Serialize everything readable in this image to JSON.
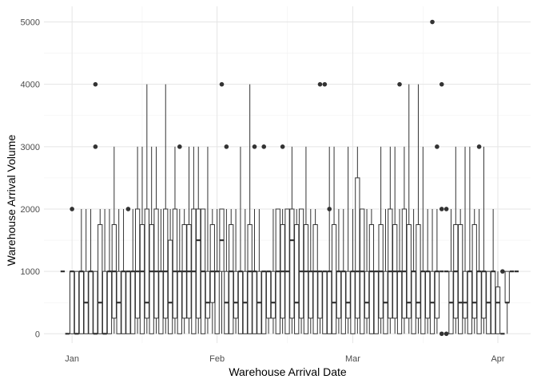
{
  "chart_data": {
    "type": "box",
    "xlabel": "Warehouse Arrival Date",
    "ylabel": "Warehouse Arrival Volume",
    "xlim": [
      "2023-12-26",
      "2024-04-08"
    ],
    "ylim": [
      -150,
      5250
    ],
    "x_ticks": [
      {
        "date": "2024-01-01",
        "label": "Jan"
      },
      {
        "date": "2024-02-01",
        "label": "Feb"
      },
      {
        "date": "2024-03-01",
        "label": "Mar"
      },
      {
        "date": "2024-04-01",
        "label": "Apr"
      }
    ],
    "x_minor_ticks": [
      "2024-01-16",
      "2024-02-16",
      "2024-03-16"
    ],
    "y_ticks": [
      0,
      1000,
      2000,
      3000,
      4000,
      5000
    ],
    "grid": true,
    "colors": {
      "box": "#333333",
      "point": "#333333",
      "grid_major": "#e5e5e5",
      "grid_minor": "#f2f2f2"
    },
    "boxes": [
      {
        "date": "2023-12-30",
        "min": 1000,
        "q1": 1000,
        "median": 1000,
        "q3": 1000,
        "max": 1000
      },
      {
        "date": "2023-12-31",
        "min": 0,
        "q1": 0,
        "median": 0,
        "q3": 0,
        "max": 0
      },
      {
        "date": "2024-01-01",
        "min": 0,
        "q1": 0,
        "median": 1000,
        "q3": 1000,
        "max": 1000,
        "outliers": [
          2000
        ]
      },
      {
        "date": "2024-01-02",
        "min": 0,
        "q1": 0,
        "median": 0,
        "q3": 1000,
        "max": 1000
      },
      {
        "date": "2024-01-03",
        "min": 0,
        "q1": 0,
        "median": 1000,
        "q3": 1000,
        "max": 2000
      },
      {
        "date": "2024-01-04",
        "min": 0,
        "q1": 0,
        "median": 500,
        "q3": 1000,
        "max": 2000
      },
      {
        "date": "2024-01-05",
        "min": 0,
        "q1": 0,
        "median": 1000,
        "q3": 1000,
        "max": 2000
      },
      {
        "date": "2024-01-06",
        "min": 0,
        "q1": 0,
        "median": 0,
        "q3": 1000,
        "max": 1000,
        "outliers": [
          3000,
          4000
        ]
      },
      {
        "date": "2024-01-07",
        "min": 0,
        "q1": 0,
        "median": 500,
        "q3": 1750,
        "max": 2000
      },
      {
        "date": "2024-01-08",
        "min": 0,
        "q1": 0,
        "median": 0,
        "q3": 1000,
        "max": 2000
      },
      {
        "date": "2024-01-09",
        "min": 0,
        "q1": 0,
        "median": 1000,
        "q3": 1000,
        "max": 2000
      },
      {
        "date": "2024-01-10",
        "min": 0,
        "q1": 250,
        "median": 1000,
        "q3": 1750,
        "max": 3000
      },
      {
        "date": "2024-01-11",
        "min": 0,
        "q1": 0,
        "median": 500,
        "q3": 1000,
        "max": 2000
      },
      {
        "date": "2024-01-12",
        "min": 0,
        "q1": 0,
        "median": 1000,
        "q3": 1000,
        "max": 2000
      },
      {
        "date": "2024-01-13",
        "min": 0,
        "q1": 0,
        "median": 1000,
        "q3": 1000,
        "max": 1000,
        "outliers": [
          2000
        ]
      },
      {
        "date": "2024-01-14",
        "min": 0,
        "q1": 0,
        "median": 1000,
        "q3": 1000,
        "max": 2000
      },
      {
        "date": "2024-01-15",
        "min": 0,
        "q1": 250,
        "median": 1000,
        "q3": 2000,
        "max": 3000
      },
      {
        "date": "2024-01-16",
        "min": 0,
        "q1": 0,
        "median": 1000,
        "q3": 1750,
        "max": 3000
      },
      {
        "date": "2024-01-17",
        "min": 0,
        "q1": 250,
        "median": 500,
        "q3": 2000,
        "max": 4000
      },
      {
        "date": "2024-01-18",
        "min": 0,
        "q1": 0,
        "median": 1000,
        "q3": 1750,
        "max": 3000
      },
      {
        "date": "2024-01-19",
        "min": 0,
        "q1": 250,
        "median": 1000,
        "q3": 2000,
        "max": 3000
      },
      {
        "date": "2024-01-20",
        "min": 0,
        "q1": 0,
        "median": 1000,
        "q3": 1000,
        "max": 2000
      },
      {
        "date": "2024-01-21",
        "min": 0,
        "q1": 250,
        "median": 1000,
        "q3": 2000,
        "max": 4000
      },
      {
        "date": "2024-01-22",
        "min": 0,
        "q1": 0,
        "median": 500,
        "q3": 1500,
        "max": 2000
      },
      {
        "date": "2024-01-23",
        "min": 0,
        "q1": 250,
        "median": 1000,
        "q3": 2000,
        "max": 3000
      },
      {
        "date": "2024-01-24",
        "min": 0,
        "q1": 0,
        "median": 1000,
        "q3": 1000,
        "max": 2000,
        "outliers": [
          3000
        ]
      },
      {
        "date": "2024-01-25",
        "min": 0,
        "q1": 250,
        "median": 1000,
        "q3": 1750,
        "max": 2000
      },
      {
        "date": "2024-01-26",
        "min": 0,
        "q1": 250,
        "median": 1000,
        "q3": 1750,
        "max": 3000
      },
      {
        "date": "2024-01-27",
        "min": 0,
        "q1": 0,
        "median": 1000,
        "q3": 2000,
        "max": 3000
      },
      {
        "date": "2024-01-28",
        "min": 0,
        "q1": 250,
        "median": 1500,
        "q3": 2000,
        "max": 3000
      },
      {
        "date": "2024-01-29",
        "min": 0,
        "q1": 0,
        "median": 1000,
        "q3": 2000,
        "max": 2000
      },
      {
        "date": "2024-01-30",
        "min": 0,
        "q1": 250,
        "median": 500,
        "q3": 1000,
        "max": 3000
      },
      {
        "date": "2024-01-31",
        "min": 0,
        "q1": 500,
        "median": 1000,
        "q3": 1750,
        "max": 2000
      },
      {
        "date": "2024-02-01",
        "min": 0,
        "q1": 0,
        "median": 1000,
        "q3": 1000,
        "max": 2000
      },
      {
        "date": "2024-02-02",
        "min": 0,
        "q1": 1000,
        "median": 1500,
        "q3": 2000,
        "max": 2000,
        "outliers": [
          4000
        ]
      },
      {
        "date": "2024-02-03",
        "min": 0,
        "q1": 0,
        "median": 500,
        "q3": 1000,
        "max": 2000,
        "outliers": [
          3000
        ]
      },
      {
        "date": "2024-02-04",
        "min": 0,
        "q1": 0,
        "median": 1000,
        "q3": 1750,
        "max": 2000
      },
      {
        "date": "2024-02-05",
        "min": 0,
        "q1": 250,
        "median": 500,
        "q3": 1000,
        "max": 2000
      },
      {
        "date": "2024-02-06",
        "min": 0,
        "q1": 0,
        "median": 1000,
        "q3": 1000,
        "max": 3000
      },
      {
        "date": "2024-02-07",
        "min": 0,
        "q1": 0,
        "median": 500,
        "q3": 1000,
        "max": 2000
      },
      {
        "date": "2024-02-08",
        "min": 0,
        "q1": 0,
        "median": 1000,
        "q3": 1750,
        "max": 4000
      },
      {
        "date": "2024-02-09",
        "min": 0,
        "q1": 0,
        "median": 1000,
        "q3": 1000,
        "max": 2000,
        "outliers": [
          3000
        ]
      },
      {
        "date": "2024-02-10",
        "min": 0,
        "q1": 0,
        "median": 500,
        "q3": 1000,
        "max": 2000
      },
      {
        "date": "2024-02-11",
        "min": 0,
        "q1": 0,
        "median": 1000,
        "q3": 1000,
        "max": 1000,
        "outliers": [
          3000
        ]
      },
      {
        "date": "2024-02-12",
        "min": 0,
        "q1": 250,
        "median": 1000,
        "q3": 1000,
        "max": 1000
      },
      {
        "date": "2024-02-13",
        "min": 0,
        "q1": 250,
        "median": 500,
        "q3": 1000,
        "max": 2000
      },
      {
        "date": "2024-02-14",
        "min": 0,
        "q1": 0,
        "median": 1000,
        "q3": 2000,
        "max": 2000
      },
      {
        "date": "2024-02-15",
        "min": 0,
        "q1": 250,
        "median": 1000,
        "q3": 1750,
        "max": 2000,
        "outliers": [
          3000
        ]
      },
      {
        "date": "2024-02-16",
        "min": 0,
        "q1": 0,
        "median": 1000,
        "q3": 2000,
        "max": 2000
      },
      {
        "date": "2024-02-17",
        "min": 0,
        "q1": 250,
        "median": 1500,
        "q3": 2000,
        "max": 3000
      },
      {
        "date": "2024-02-18",
        "min": 0,
        "q1": 0,
        "median": 500,
        "q3": 1750,
        "max": 2000
      },
      {
        "date": "2024-02-19",
        "min": 0,
        "q1": 250,
        "median": 1000,
        "q3": 2000,
        "max": 2000
      },
      {
        "date": "2024-02-20",
        "min": 0,
        "q1": 0,
        "median": 1000,
        "q3": 1750,
        "max": 3000
      },
      {
        "date": "2024-02-21",
        "min": 0,
        "q1": 250,
        "median": 1000,
        "q3": 1000,
        "max": 2000
      },
      {
        "date": "2024-02-22",
        "min": 0,
        "q1": 0,
        "median": 1000,
        "q3": 1750,
        "max": 2000
      },
      {
        "date": "2024-02-23",
        "min": 0,
        "q1": 250,
        "median": 1000,
        "q3": 1000,
        "max": 1000,
        "outliers": [
          4000
        ]
      },
      {
        "date": "2024-02-24",
        "min": 0,
        "q1": 0,
        "median": 1000,
        "q3": 1000,
        "max": 1000,
        "outliers": [
          4000
        ]
      },
      {
        "date": "2024-02-25",
        "min": 0,
        "q1": 0,
        "median": 1000,
        "q3": 1000,
        "max": 3000,
        "outliers": [
          2000
        ]
      },
      {
        "date": "2024-02-26",
        "min": 0,
        "q1": 0,
        "median": 500,
        "q3": 1750,
        "max": 3000
      },
      {
        "date": "2024-02-27",
        "min": 0,
        "q1": 250,
        "median": 1000,
        "q3": 1000,
        "max": 2000
      },
      {
        "date": "2024-02-28",
        "min": 0,
        "q1": 0,
        "median": 1000,
        "q3": 1000,
        "max": 2000
      },
      {
        "date": "2024-02-29",
        "min": 0,
        "q1": 250,
        "median": 500,
        "q3": 1000,
        "max": 3000
      },
      {
        "date": "2024-03-01",
        "min": 0,
        "q1": 0,
        "median": 1000,
        "q3": 1000,
        "max": 2000
      },
      {
        "date": "2024-03-02",
        "min": 0,
        "q1": 250,
        "median": 1000,
        "q3": 2500,
        "max": 3000
      },
      {
        "date": "2024-03-03",
        "min": 0,
        "q1": 0,
        "median": 1000,
        "q3": 2000,
        "max": 2000
      },
      {
        "date": "2024-03-04",
        "min": 0,
        "q1": 250,
        "median": 500,
        "q3": 1000,
        "max": 2000
      },
      {
        "date": "2024-03-05",
        "min": 0,
        "q1": 0,
        "median": 1000,
        "q3": 1750,
        "max": 2000
      },
      {
        "date": "2024-03-06",
        "min": 0,
        "q1": 0,
        "median": 1000,
        "q3": 1000,
        "max": 1000
      },
      {
        "date": "2024-03-07",
        "min": 0,
        "q1": 250,
        "median": 1000,
        "q3": 1750,
        "max": 3000
      },
      {
        "date": "2024-03-08",
        "min": 0,
        "q1": 0,
        "median": 500,
        "q3": 1000,
        "max": 2000
      },
      {
        "date": "2024-03-09",
        "min": 0,
        "q1": 250,
        "median": 1000,
        "q3": 2000,
        "max": 3000
      },
      {
        "date": "2024-03-10",
        "min": 0,
        "q1": 250,
        "median": 1000,
        "q3": 1750,
        "max": 3000
      },
      {
        "date": "2024-03-11",
        "min": 0,
        "q1": 0,
        "median": 1000,
        "q3": 1000,
        "max": 2000,
        "outliers": [
          4000
        ]
      },
      {
        "date": "2024-03-12",
        "min": 0,
        "q1": 250,
        "median": 1000,
        "q3": 2000,
        "max": 3000
      },
      {
        "date": "2024-03-13",
        "min": 0,
        "q1": 250,
        "median": 500,
        "q3": 1750,
        "max": 4000
      },
      {
        "date": "2024-03-14",
        "min": 0,
        "q1": 0,
        "median": 1000,
        "q3": 1000,
        "max": 2000
      },
      {
        "date": "2024-03-15",
        "min": 0,
        "q1": 250,
        "median": 500,
        "q3": 1750,
        "max": 4000
      },
      {
        "date": "2024-03-16",
        "min": 0,
        "q1": 0,
        "median": 1000,
        "q3": 1000,
        "max": 3000
      },
      {
        "date": "2024-03-17",
        "min": 0,
        "q1": 250,
        "median": 1000,
        "q3": 1000,
        "max": 2000
      },
      {
        "date": "2024-03-18",
        "min": 0,
        "q1": 0,
        "median": 500,
        "q3": 1000,
        "max": 2000,
        "outliers": [
          5000
        ]
      },
      {
        "date": "2024-03-19",
        "min": 0,
        "q1": 250,
        "median": 1000,
        "q3": 1000,
        "max": 2000,
        "outliers": [
          3000
        ]
      },
      {
        "date": "2024-03-20",
        "min": 1000,
        "q1": 1000,
        "median": 1000,
        "q3": 1000,
        "max": 1000,
        "outliers": [
          0,
          2000,
          4000
        ]
      },
      {
        "date": "2024-03-21",
        "min": 1000,
        "q1": 1000,
        "median": 1000,
        "q3": 1000,
        "max": 1000,
        "outliers": [
          0,
          2000
        ]
      },
      {
        "date": "2024-03-22",
        "min": 0,
        "q1": 0,
        "median": 500,
        "q3": 1000,
        "max": 2000
      },
      {
        "date": "2024-03-23",
        "min": 0,
        "q1": 250,
        "median": 1000,
        "q3": 1750,
        "max": 3000
      },
      {
        "date": "2024-03-24",
        "min": 0,
        "q1": 0,
        "median": 500,
        "q3": 1750,
        "max": 2000
      },
      {
        "date": "2024-03-25",
        "min": 0,
        "q1": 250,
        "median": 500,
        "q3": 1000,
        "max": 3000
      },
      {
        "date": "2024-03-26",
        "min": 0,
        "q1": 0,
        "median": 1000,
        "q3": 1000,
        "max": 3000
      },
      {
        "date": "2024-03-27",
        "min": 0,
        "q1": 250,
        "median": 500,
        "q3": 1750,
        "max": 2000
      },
      {
        "date": "2024-03-28",
        "min": 0,
        "q1": 0,
        "median": 1000,
        "q3": 1000,
        "max": 2000,
        "outliers": [
          3000
        ]
      },
      {
        "date": "2024-03-29",
        "min": 0,
        "q1": 250,
        "median": 1000,
        "q3": 1000,
        "max": 3000
      },
      {
        "date": "2024-03-30",
        "min": 0,
        "q1": 0,
        "median": 500,
        "q3": 1000,
        "max": 1000
      },
      {
        "date": "2024-03-31",
        "min": 0,
        "q1": 0,
        "median": 1000,
        "q3": 1000,
        "max": 2000
      },
      {
        "date": "2024-04-01",
        "min": 0,
        "q1": 0,
        "median": 500,
        "q3": 750,
        "max": 1000
      },
      {
        "date": "2024-04-02",
        "min": 0,
        "q1": 0,
        "median": 0,
        "q3": 0,
        "max": 0,
        "outliers": [
          1000
        ]
      },
      {
        "date": "2024-04-03",
        "min": 0,
        "q1": 500,
        "median": 500,
        "q3": 1000,
        "max": 1000
      },
      {
        "date": "2024-04-04",
        "min": 1000,
        "q1": 1000,
        "median": 1000,
        "q3": 1000,
        "max": 1000
      },
      {
        "date": "2024-04-05",
        "min": 1000,
        "q1": 1000,
        "median": 1000,
        "q3": 1000,
        "max": 1000
      }
    ]
  }
}
